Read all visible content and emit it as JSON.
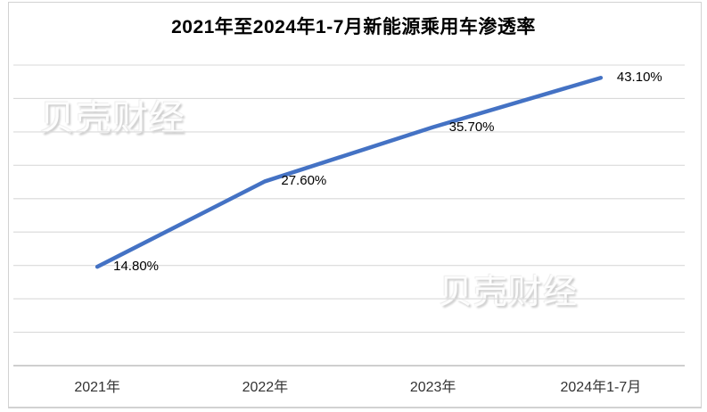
{
  "chart_data": {
    "type": "line",
    "title": "2021年至2024年1-7月新能源乘用车渗透率",
    "categories": [
      "2021年",
      "2022年",
      "2023年",
      "2024年1-7月"
    ],
    "series": [
      {
        "name": "新能源乘用车渗透率",
        "values": [
          14.8,
          27.6,
          35.7,
          43.1
        ],
        "labels": [
          "14.80%",
          "27.60%",
          "35.70%",
          "43.10%"
        ]
      }
    ],
    "xlabel": "",
    "ylabel": "",
    "ylim": [
      0,
      45
    ],
    "y_grid_step": 5,
    "grid": "horizontal",
    "y_tick_labels_visible": false,
    "legend": "none",
    "line_color": "#4472C4",
    "grid_color": "#d9d9d9",
    "axis_color": "#bfbfbf",
    "label_color": "#000000",
    "title_color": "#000000",
    "background_color": "#ffffff"
  },
  "watermarks": {
    "top_left": "贝壳财经",
    "bottom_right": "贝壳财经"
  }
}
